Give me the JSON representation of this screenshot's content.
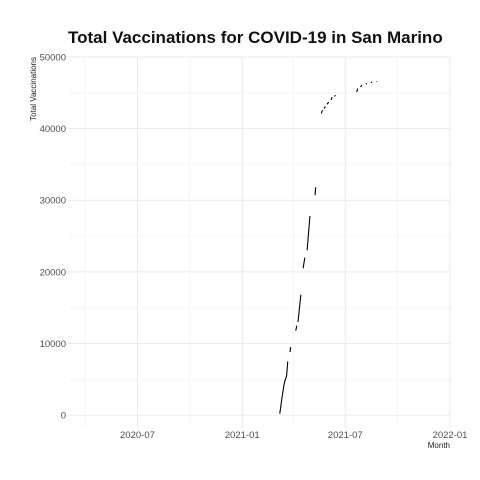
{
  "chart_data": {
    "type": "line",
    "title": "Total Vaccinations for COVID-19 in San Marino",
    "xlabel": "Month",
    "ylabel": "Total Vaccinations",
    "xlim": [
      "2020-03-01",
      "2022-01-01"
    ],
    "ylim": [
      -1800,
      50000
    ],
    "x_ticks": [
      "2020-07",
      "2021-01",
      "2021-07",
      "2022-01"
    ],
    "y_ticks": [
      0,
      10000,
      20000,
      30000,
      40000,
      50000
    ],
    "grid": true,
    "line_color": "#000000",
    "segments": [
      [
        [
          "2021-03-08",
          200
        ],
        [
          "2021-03-12",
          2500
        ],
        [
          "2021-03-16",
          4500
        ],
        [
          "2021-03-20",
          5500
        ],
        [
          "2021-03-22",
          7500
        ]
      ],
      [
        [
          "2021-03-26",
          8800
        ],
        [
          "2021-03-27",
          9500
        ]
      ],
      [
        [
          "2021-04-05",
          11800
        ],
        [
          "2021-04-07",
          12500
        ]
      ],
      [
        [
          "2021-04-09",
          13000
        ],
        [
          "2021-04-14",
          16800
        ]
      ],
      [
        [
          "2021-04-18",
          20500
        ],
        [
          "2021-04-21",
          22000
        ]
      ],
      [
        [
          "2021-04-25",
          23000
        ],
        [
          "2021-04-30",
          27800
        ]
      ],
      [
        [
          "2021-05-09",
          30700
        ],
        [
          "2021-05-10",
          31800
        ]
      ],
      [
        [
          "2021-05-20",
          42100
        ],
        [
          "2021-05-22",
          42600
        ]
      ],
      [
        [
          "2021-05-25",
          42800
        ],
        [
          "2021-05-27",
          43100
        ]
      ],
      [
        [
          "2021-05-30",
          43400
        ],
        [
          "2021-06-02",
          43700
        ]
      ],
      [
        [
          "2021-06-06",
          44000
        ],
        [
          "2021-06-08",
          44400
        ]
      ],
      [
        [
          "2021-06-12",
          44500
        ],
        [
          "2021-06-14",
          44650
        ]
      ],
      [
        [
          "2021-07-21",
          45100
        ],
        [
          "2021-07-23",
          45600
        ]
      ],
      [
        [
          "2021-07-28",
          45800
        ],
        [
          "2021-07-30",
          46100
        ]
      ],
      [
        [
          "2021-08-06",
          46200
        ],
        [
          "2021-08-08",
          46300
        ]
      ],
      [
        [
          "2021-08-15",
          46400
        ],
        [
          "2021-08-17",
          46500
        ]
      ],
      [
        [
          "2021-08-25",
          46550
        ],
        [
          "2021-08-26",
          46600
        ]
      ]
    ]
  }
}
